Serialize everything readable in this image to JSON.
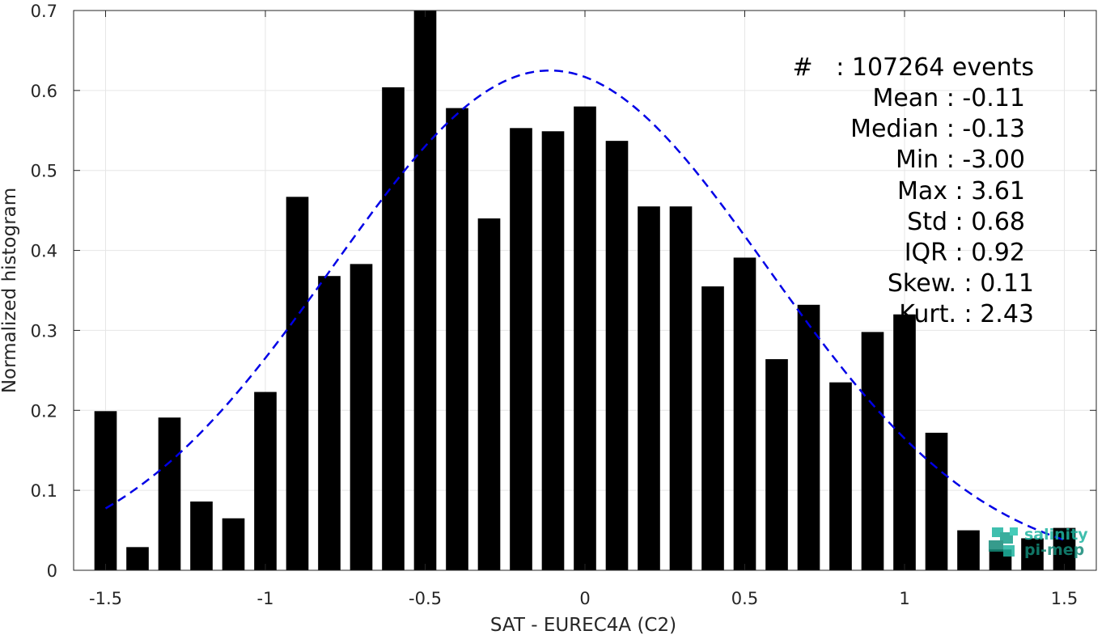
{
  "chart_data": {
    "type": "bar",
    "xlabel": "SAT - EUREC4A (C2)",
    "ylabel": "Normalized histogram",
    "xlim": [
      -1.6,
      1.6
    ],
    "ylim": [
      0,
      0.7
    ],
    "xticks": [
      -1.5,
      -1,
      -0.5,
      0,
      0.5,
      1,
      1.5
    ],
    "xtick_labels": [
      "-1.5",
      "-1",
      "-0.5",
      "0",
      "0.5",
      "1",
      "1.5"
    ],
    "yticks": [
      0,
      0.1,
      0.2,
      0.3,
      0.4,
      0.5,
      0.6,
      0.7
    ],
    "ytick_labels": [
      "0",
      "0.1",
      "0.2",
      "0.3",
      "0.4",
      "0.5",
      "0.6",
      "0.7"
    ],
    "grid": true,
    "bar_color": "#000000",
    "bars": {
      "x": [
        -1.5,
        -1.4,
        -1.3,
        -1.2,
        -1.1,
        -1.0,
        -0.9,
        -0.8,
        -0.7,
        -0.6,
        -0.5,
        -0.4,
        -0.3,
        -0.2,
        -0.1,
        0.0,
        0.1,
        0.2,
        0.3,
        0.4,
        0.5,
        0.6,
        0.7,
        0.8,
        0.9,
        1.0,
        1.1,
        1.2,
        1.3,
        1.4,
        1.5
      ],
      "values": [
        0.199,
        0.029,
        0.191,
        0.086,
        0.065,
        0.223,
        0.467,
        0.368,
        0.383,
        0.604,
        0.7,
        0.578,
        0.44,
        0.553,
        0.549,
        0.58,
        0.537,
        0.455,
        0.455,
        0.355,
        0.391,
        0.264,
        0.332,
        0.235,
        0.298,
        0.32,
        0.172,
        0.05,
        0.026,
        0.04,
        0.053
      ]
    },
    "fit_curve": {
      "style": "dashed",
      "color": "#0000e6",
      "mean": -0.11,
      "std": 0.68,
      "peak": 0.625,
      "x_range": [
        -1.5,
        1.5
      ]
    },
    "annotation": [
      {
        "label": "#",
        "value": ": 107264 events"
      },
      {
        "label": "Mean",
        "value": ": -0.11"
      },
      {
        "label": "Median",
        "value": ": -0.13"
      },
      {
        "label": "Min",
        "value": ": -3.00"
      },
      {
        "label": "Max",
        "value": ": 3.61"
      },
      {
        "label": "Std",
        "value": ": 0.68"
      },
      {
        "label": "IQR",
        "value": ": 0.92"
      },
      {
        "label": "Skew.",
        "value": ": 0.11"
      },
      {
        "label": "Kurt.",
        "value": ": 2.43"
      }
    ]
  },
  "stats_text": {
    "events": "#   : 107264 events",
    "mean": "Mean : -0.11",
    "median": "Median : -0.13",
    "min": "Min : -3.00",
    "max": "Max : 3.61",
    "std": "Std : 0.68",
    "iqr": "IQR : 0.92",
    "skew": "Skew. : 0.11",
    "kurt": "Kurt. : 2.43"
  },
  "logo": {
    "line1": "salinity",
    "line2": "pi-mep",
    "icon": "salinity-pimep-logo-icon",
    "color": "#1fb5a0"
  }
}
